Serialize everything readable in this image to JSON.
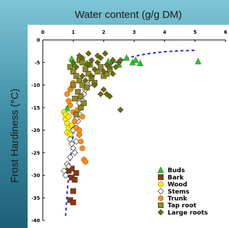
{
  "chart_data": {
    "type": "scatter",
    "xlabel": "Water content (g/g DM)",
    "ylabel": "Frost Hardiness (°C)",
    "xlim": [
      0,
      6
    ],
    "ylim": [
      -40,
      0
    ],
    "x_ticks": [
      "0",
      "1",
      "2",
      "3",
      "4",
      "5",
      "6"
    ],
    "y_ticks": [
      "0",
      "-5",
      "-10",
      "-15",
      "-20",
      "-25",
      "-30",
      "-35",
      "-40"
    ],
    "legend_position": "bottom-right",
    "grid": false,
    "series": [
      {
        "name": "Buds",
        "marker": "triangle",
        "color": "#22cc22",
        "points": [
          [
            0.95,
            -4.2
          ],
          [
            1.05,
            -5.5
          ],
          [
            1.45,
            -5.2
          ],
          [
            2.15,
            -4.8
          ],
          [
            2.3,
            -4.5
          ],
          [
            2.5,
            -5.5
          ],
          [
            2.75,
            -4.0
          ],
          [
            2.95,
            -5.0
          ],
          [
            3.05,
            -4.5
          ],
          [
            3.2,
            -5.2
          ],
          [
            5.1,
            -4.8
          ],
          [
            0.8,
            -15.2
          ]
        ]
      },
      {
        "name": "Bark",
        "marker": "square",
        "color": "#8b3a0f",
        "points": [
          [
            0.85,
            -29.0
          ],
          [
            0.95,
            -30.5
          ],
          [
            1.0,
            -33.5
          ],
          [
            1.05,
            -31.0
          ],
          [
            0.9,
            -35.5
          ],
          [
            1.0,
            -36.0
          ],
          [
            1.1,
            -29.5
          ],
          [
            0.95,
            -28.5
          ]
        ]
      },
      {
        "name": "Wood",
        "marker": "circle",
        "color": "#ffee00",
        "points": [
          [
            0.7,
            -16.0
          ],
          [
            0.75,
            -17.5
          ],
          [
            0.8,
            -18.5
          ],
          [
            0.85,
            -19.5
          ],
          [
            0.8,
            -20.5
          ],
          [
            0.9,
            -21.0
          ],
          [
            0.95,
            -19.0
          ],
          [
            0.75,
            -16.5
          ],
          [
            0.85,
            -17.0
          ]
        ]
      },
      {
        "name": "Stems",
        "marker": "diamond-open",
        "color": "#ffffff",
        "points": [
          [
            0.7,
            -29.0
          ],
          [
            0.75,
            -30.0
          ],
          [
            0.8,
            -27.5
          ],
          [
            0.9,
            -26.0
          ],
          [
            1.0,
            -24.0
          ],
          [
            1.1,
            -22.5
          ],
          [
            1.2,
            -21.0
          ],
          [
            0.95,
            -23.0
          ],
          [
            1.05,
            -19.5
          ],
          [
            1.15,
            -18.0
          ],
          [
            1.2,
            -16.5
          ],
          [
            1.25,
            -15.0
          ],
          [
            1.3,
            -13.5
          ],
          [
            1.0,
            -20.0
          ],
          [
            1.1,
            -17.5
          ],
          [
            0.9,
            -22.0
          ],
          [
            1.35,
            -12.0
          ],
          [
            1.4,
            -11.0
          ],
          [
            1.5,
            -10.0
          ],
          [
            1.6,
            -9.5
          ],
          [
            1.2,
            -14.0
          ],
          [
            1.05,
            -25.0
          ],
          [
            0.85,
            -28.0
          ]
        ]
      },
      {
        "name": "Trunk",
        "marker": "circle",
        "color": "#ff8c1a",
        "points": [
          [
            0.8,
            -12.0
          ],
          [
            0.85,
            -13.5
          ],
          [
            0.9,
            -14.5
          ],
          [
            0.9,
            -11.0
          ],
          [
            1.0,
            -16.0
          ],
          [
            1.05,
            -18.0
          ],
          [
            1.1,
            -19.5
          ],
          [
            1.2,
            -21.0
          ],
          [
            1.25,
            -22.5
          ],
          [
            1.3,
            -24.0
          ],
          [
            1.35,
            -26.5
          ],
          [
            1.4,
            -27.0
          ],
          [
            1.0,
            -9.5
          ],
          [
            1.1,
            -13.0
          ],
          [
            1.15,
            -15.5
          ],
          [
            0.95,
            -10.5
          ],
          [
            1.3,
            -17.0
          ],
          [
            1.2,
            -20.0
          ]
        ]
      },
      {
        "name": "Tap root",
        "marker": "square",
        "color": "#8b8b2a",
        "points": [
          [
            0.9,
            -6.0
          ],
          [
            1.0,
            -7.0
          ],
          [
            1.1,
            -8.0
          ],
          [
            1.2,
            -9.0
          ],
          [
            1.3,
            -10.0
          ],
          [
            1.15,
            -11.5
          ],
          [
            1.25,
            -12.5
          ],
          [
            1.0,
            -10.0
          ],
          [
            1.05,
            -13.0
          ],
          [
            1.35,
            -14.0
          ],
          [
            1.4,
            -6.5
          ],
          [
            1.5,
            -7.5
          ],
          [
            1.6,
            -8.5
          ],
          [
            1.7,
            -9.5
          ],
          [
            1.8,
            -7.0
          ],
          [
            1.9,
            -6.0
          ],
          [
            2.0,
            -8.0
          ],
          [
            2.1,
            -7.5
          ],
          [
            2.2,
            -6.5
          ],
          [
            1.55,
            -5.5
          ],
          [
            1.2,
            -4.5
          ],
          [
            1.3,
            -5.0
          ],
          [
            1.45,
            -10.5
          ],
          [
            1.25,
            -15.0
          ],
          [
            1.1,
            -16.5
          ]
        ]
      },
      {
        "name": "Large roots",
        "marker": "diamond",
        "color": "#6b6b10",
        "points": [
          [
            1.0,
            -5.0
          ],
          [
            1.1,
            -6.0
          ],
          [
            1.2,
            -3.5
          ],
          [
            1.3,
            -4.0
          ],
          [
            1.5,
            -5.5
          ],
          [
            1.6,
            -4.5
          ],
          [
            1.7,
            -6.5
          ],
          [
            1.8,
            -5.0
          ],
          [
            1.9,
            -4.0
          ],
          [
            2.0,
            -7.0
          ],
          [
            2.1,
            -5.5
          ],
          [
            2.2,
            -6.0
          ],
          [
            2.3,
            -7.5
          ],
          [
            2.4,
            -6.0
          ],
          [
            2.5,
            -5.0
          ],
          [
            2.55,
            -4.5
          ],
          [
            1.5,
            -3.0
          ],
          [
            1.8,
            -3.5
          ],
          [
            2.05,
            -3.0
          ],
          [
            2.0,
            -11.0
          ],
          [
            2.1,
            -12.0
          ],
          [
            2.2,
            -12.5
          ],
          [
            1.9,
            -12.0
          ],
          [
            1.4,
            -9.0
          ],
          [
            1.7,
            -10.0
          ],
          [
            2.55,
            -15.5
          ],
          [
            1.3,
            -8.0
          ],
          [
            1.6,
            -8.0
          ],
          [
            2.3,
            -4.5
          ]
        ]
      }
    ],
    "fit_curve": {
      "color": "#1a1aff",
      "x": [
        0.75,
        0.8,
        0.85,
        0.9,
        1.0,
        1.1,
        1.2,
        1.4,
        1.6,
        1.8,
        2.0,
        2.3,
        2.6,
        3.0,
        3.5,
        4.0,
        4.5,
        5.0
      ],
      "y": [
        -39.0,
        -34.0,
        -30.0,
        -26.5,
        -21.0,
        -17.0,
        -14.0,
        -10.5,
        -8.5,
        -7.2,
        -6.2,
        -5.2,
        -4.4,
        -3.6,
        -3.0,
        -2.6,
        -2.4,
        -2.3
      ]
    }
  }
}
